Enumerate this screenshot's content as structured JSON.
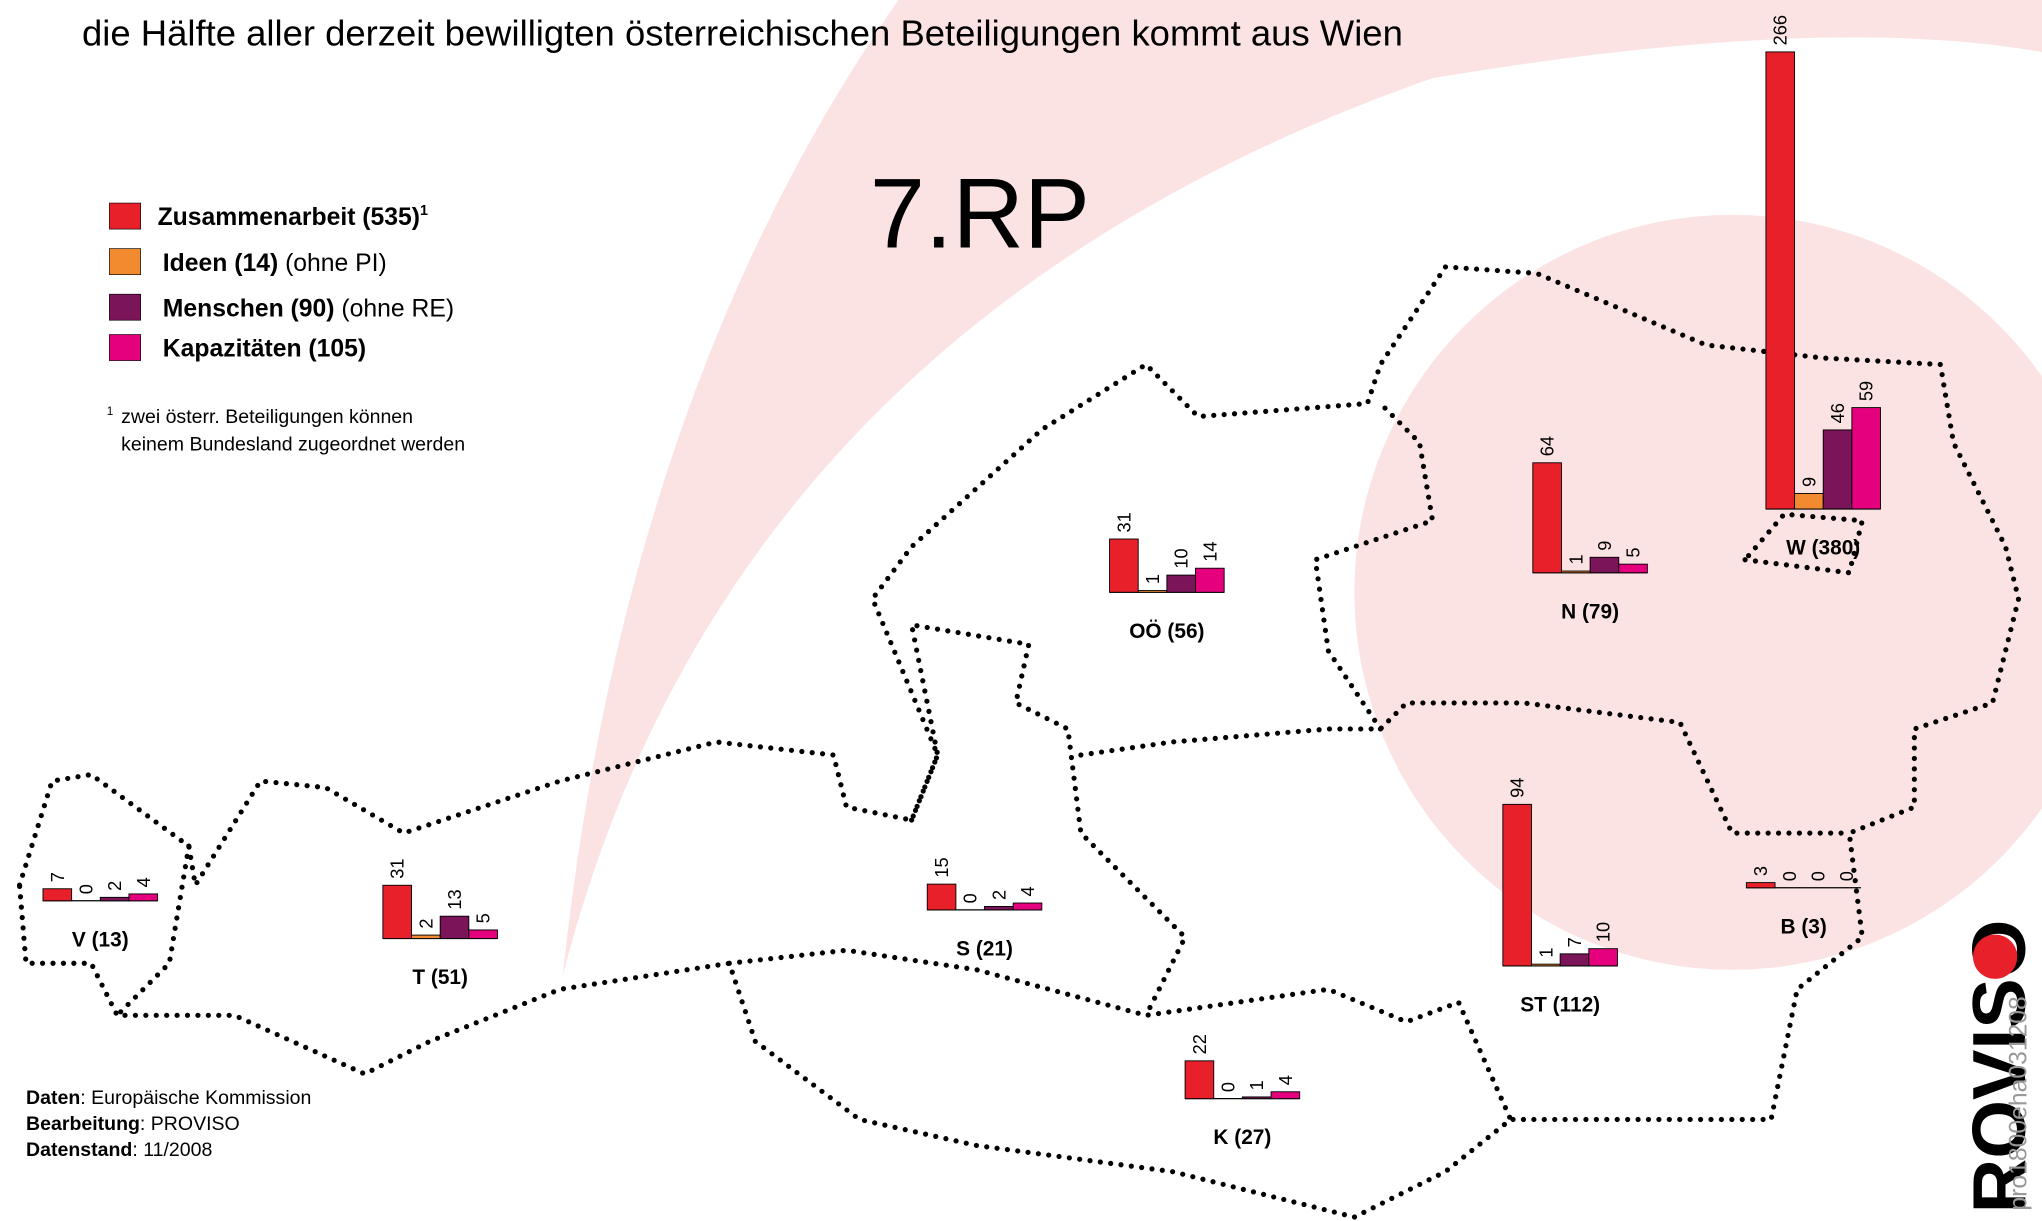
{
  "title": "die Hälfte aller derzeit bewilligten österreichischen Beteiligungen kommt aus Wien",
  "program": "7.RP",
  "series": [
    {
      "name": "Zusammenarbeit (535)",
      "sup": "1",
      "color": "#e8202a"
    },
    {
      "name": "Ideen (14)",
      "note": " (ohne PI)",
      "color": "#f28a30"
    },
    {
      "name": "Menschen (90)",
      "note": " (ohne RE)",
      "color": "#7b1458"
    },
    {
      "name": "Kapazitäten (105)",
      "color": "#e5007e"
    }
  ],
  "footnote": {
    "mark": "1",
    "lines": [
      "zwei österr. Beteiligungen können",
      "keinem Bundesland zugeordnet werden"
    ]
  },
  "regions": [
    {
      "label": "V (13)",
      "values": [
        7,
        0,
        2,
        4
      ]
    },
    {
      "label": "T (51)",
      "values": [
        31,
        2,
        13,
        5
      ]
    },
    {
      "label": "S (21)",
      "values": [
        15,
        0,
        2,
        4
      ]
    },
    {
      "label": "OÖ (56)",
      "values": [
        31,
        1,
        10,
        14
      ]
    },
    {
      "label": "N (79)",
      "values": [
        64,
        1,
        9,
        5
      ]
    },
    {
      "label": "W (380)",
      "values": [
        266,
        9,
        46,
        59
      ]
    },
    {
      "label": "ST (112)",
      "values": [
        94,
        1,
        7,
        10
      ]
    },
    {
      "label": "B (3)",
      "values": [
        3,
        0,
        0,
        0
      ]
    },
    {
      "label": "K (27)",
      "values": [
        22,
        0,
        1,
        4
      ]
    }
  ],
  "sources": [
    {
      "key": "Daten",
      "value": ": Europäische Kommission"
    },
    {
      "key": "Bearbeitung",
      "value": ": PROVISO"
    },
    {
      "key": "Datenstand",
      "value": ": 11/2008"
    }
  ],
  "logo": "ROVISO",
  "code": "pro1800eha031208"
}
